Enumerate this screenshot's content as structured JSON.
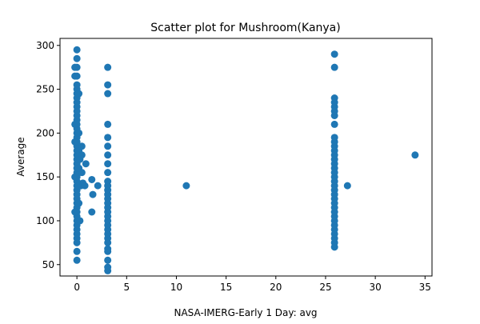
{
  "chart_data": {
    "type": "scatter",
    "title": "Scatter plot for Mushroom(Kanya)",
    "xlabel": "NASA-IMERG-Early 1 Day: avg",
    "ylabel": "Average",
    "xlim": [
      -1.7,
      35.7
    ],
    "ylim": [
      37,
      308
    ],
    "xticks": [
      0,
      5,
      10,
      15,
      20,
      25,
      30,
      35
    ],
    "yticks": [
      50,
      100,
      150,
      200,
      250,
      300
    ],
    "grid": false,
    "marker_color": "#1f77b4",
    "points": [
      [
        0,
        55
      ],
      [
        0,
        65
      ],
      [
        0,
        75
      ],
      [
        0,
        80
      ],
      [
        0,
        85
      ],
      [
        0,
        90
      ],
      [
        0,
        95
      ],
      [
        0,
        100
      ],
      [
        0,
        105
      ],
      [
        0,
        110
      ],
      [
        0,
        115
      ],
      [
        0,
        120
      ],
      [
        0,
        125
      ],
      [
        0,
        130
      ],
      [
        0,
        135
      ],
      [
        0,
        140
      ],
      [
        0,
        145
      ],
      [
        0,
        150
      ],
      [
        0,
        155
      ],
      [
        0,
        160
      ],
      [
        0,
        165
      ],
      [
        0,
        170
      ],
      [
        0,
        175
      ],
      [
        0,
        180
      ],
      [
        0,
        185
      ],
      [
        0,
        190
      ],
      [
        0,
        195
      ],
      [
        0,
        200
      ],
      [
        0,
        205
      ],
      [
        0,
        210
      ],
      [
        0,
        215
      ],
      [
        0,
        220
      ],
      [
        0,
        225
      ],
      [
        0,
        230
      ],
      [
        0,
        235
      ],
      [
        0,
        240
      ],
      [
        0,
        245
      ],
      [
        0,
        250
      ],
      [
        0,
        255
      ],
      [
        0,
        265
      ],
      [
        0,
        275
      ],
      [
        0,
        285
      ],
      [
        0,
        295
      ],
      [
        -0.2,
        110
      ],
      [
        -0.2,
        150
      ],
      [
        -0.2,
        190
      ],
      [
        -0.2,
        210
      ],
      [
        -0.2,
        265
      ],
      [
        -0.2,
        275
      ],
      [
        0.2,
        120
      ],
      [
        0.2,
        140
      ],
      [
        0.2,
        160
      ],
      [
        0.2,
        180
      ],
      [
        0.2,
        200
      ],
      [
        0.2,
        245
      ],
      [
        0.3,
        100
      ],
      [
        0.3,
        170
      ],
      [
        0.4,
        140
      ],
      [
        0.5,
        155
      ],
      [
        0.5,
        175
      ],
      [
        0.5,
        185
      ],
      [
        0.6,
        143
      ],
      [
        0.8,
        140
      ],
      [
        0.9,
        165
      ],
      [
        1.5,
        147
      ],
      [
        1.5,
        110
      ],
      [
        1.6,
        130
      ],
      [
        2.1,
        140
      ],
      [
        3.1,
        43
      ],
      [
        3.1,
        47
      ],
      [
        3.1,
        55
      ],
      [
        3.1,
        65
      ],
      [
        3.1,
        68
      ],
      [
        3.1,
        75
      ],
      [
        3.1,
        80
      ],
      [
        3.1,
        85
      ],
      [
        3.1,
        90
      ],
      [
        3.1,
        95
      ],
      [
        3.1,
        100
      ],
      [
        3.1,
        105
      ],
      [
        3.1,
        110
      ],
      [
        3.1,
        115
      ],
      [
        3.1,
        120
      ],
      [
        3.1,
        125
      ],
      [
        3.1,
        130
      ],
      [
        3.1,
        135
      ],
      [
        3.1,
        140
      ],
      [
        3.1,
        145
      ],
      [
        3.1,
        155
      ],
      [
        3.1,
        165
      ],
      [
        3.1,
        175
      ],
      [
        3.1,
        185
      ],
      [
        3.1,
        195
      ],
      [
        3.1,
        210
      ],
      [
        3.1,
        245
      ],
      [
        3.1,
        255
      ],
      [
        3.1,
        275
      ],
      [
        11,
        140
      ],
      [
        25.9,
        70
      ],
      [
        25.9,
        75
      ],
      [
        25.9,
        80
      ],
      [
        25.9,
        85
      ],
      [
        25.9,
        90
      ],
      [
        25.9,
        95
      ],
      [
        25.9,
        100
      ],
      [
        25.9,
        105
      ],
      [
        25.9,
        110
      ],
      [
        25.9,
        115
      ],
      [
        25.9,
        120
      ],
      [
        25.9,
        125
      ],
      [
        25.9,
        130
      ],
      [
        25.9,
        135
      ],
      [
        25.9,
        140
      ],
      [
        25.9,
        145
      ],
      [
        25.9,
        150
      ],
      [
        25.9,
        155
      ],
      [
        25.9,
        160
      ],
      [
        25.9,
        165
      ],
      [
        25.9,
        170
      ],
      [
        25.9,
        175
      ],
      [
        25.9,
        180
      ],
      [
        25.9,
        185
      ],
      [
        25.9,
        190
      ],
      [
        25.9,
        195
      ],
      [
        25.9,
        210
      ],
      [
        25.9,
        220
      ],
      [
        25.9,
        225
      ],
      [
        25.9,
        230
      ],
      [
        25.9,
        235
      ],
      [
        25.9,
        240
      ],
      [
        25.9,
        275
      ],
      [
        25.9,
        290
      ],
      [
        27.2,
        140
      ],
      [
        34,
        175
      ]
    ]
  }
}
